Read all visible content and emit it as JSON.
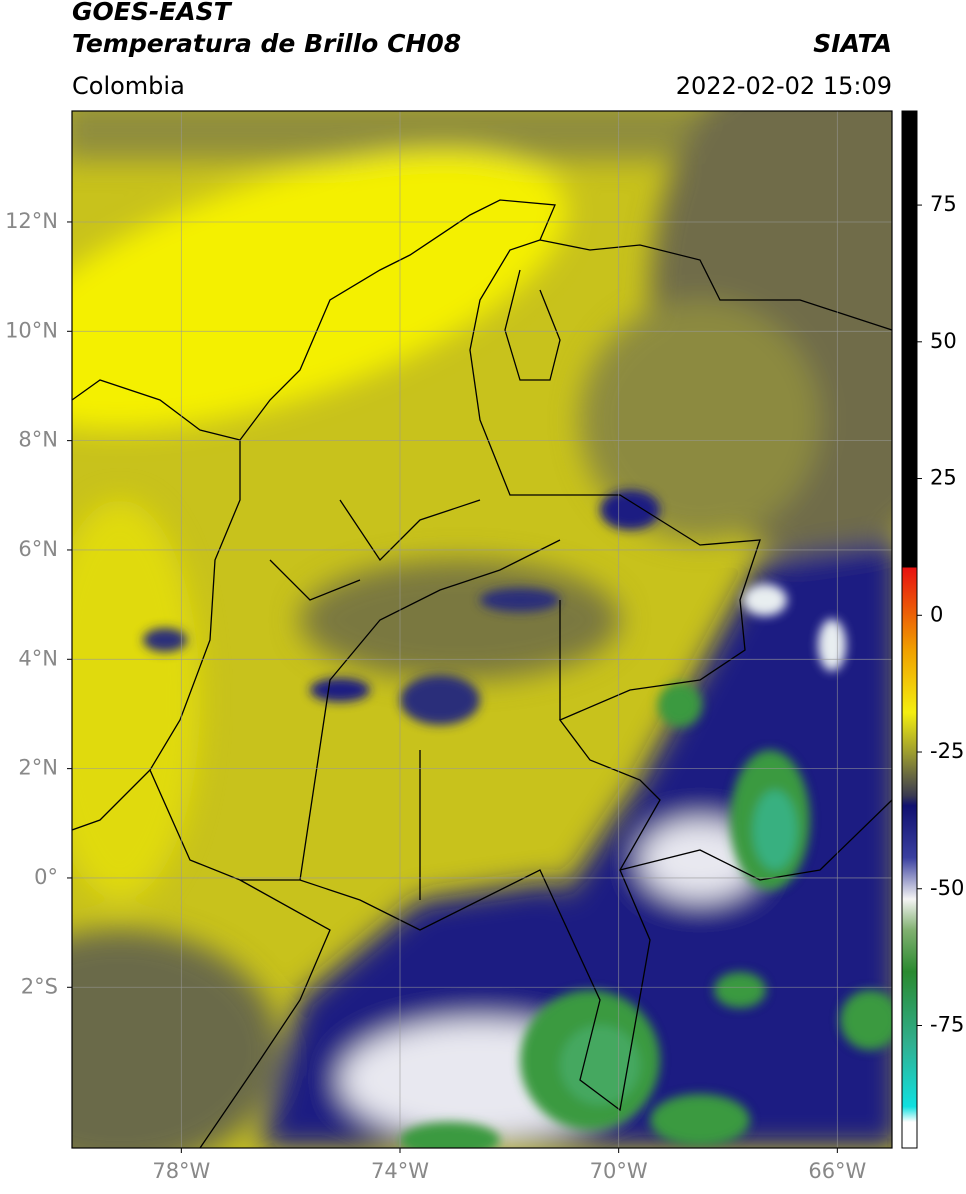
{
  "header": {
    "title_line1": "GOES-EAST",
    "title_line2": "Temperatura de Brillo CH08",
    "region": "Colombia",
    "source": "SIATA",
    "datetime": "2022-02-02 15:09"
  },
  "map": {
    "xlim": [
      -80,
      -65
    ],
    "ylim": [
      -4.94,
      14.03
    ],
    "xticks": [
      {
        "value": -78,
        "label": "78°W"
      },
      {
        "value": -74,
        "label": "74°W"
      },
      {
        "value": -70,
        "label": "70°W"
      },
      {
        "value": -66,
        "label": "66°W"
      }
    ],
    "yticks": [
      {
        "value": 12,
        "label": "12°N"
      },
      {
        "value": 10,
        "label": "10°N"
      },
      {
        "value": 8,
        "label": "8°N"
      },
      {
        "value": 6,
        "label": "6°N"
      },
      {
        "value": 4,
        "label": "4°N"
      },
      {
        "value": 2,
        "label": "2°N"
      },
      {
        "value": 0,
        "label": "0°"
      },
      {
        "value": -2,
        "label": "2°S"
      }
    ],
    "grid": true
  },
  "colorbar": {
    "lim": [
      -97.4,
      92.2
    ],
    "ticks": [
      75,
      50,
      25,
      0,
      -25,
      -50,
      -75
    ]
  }
}
